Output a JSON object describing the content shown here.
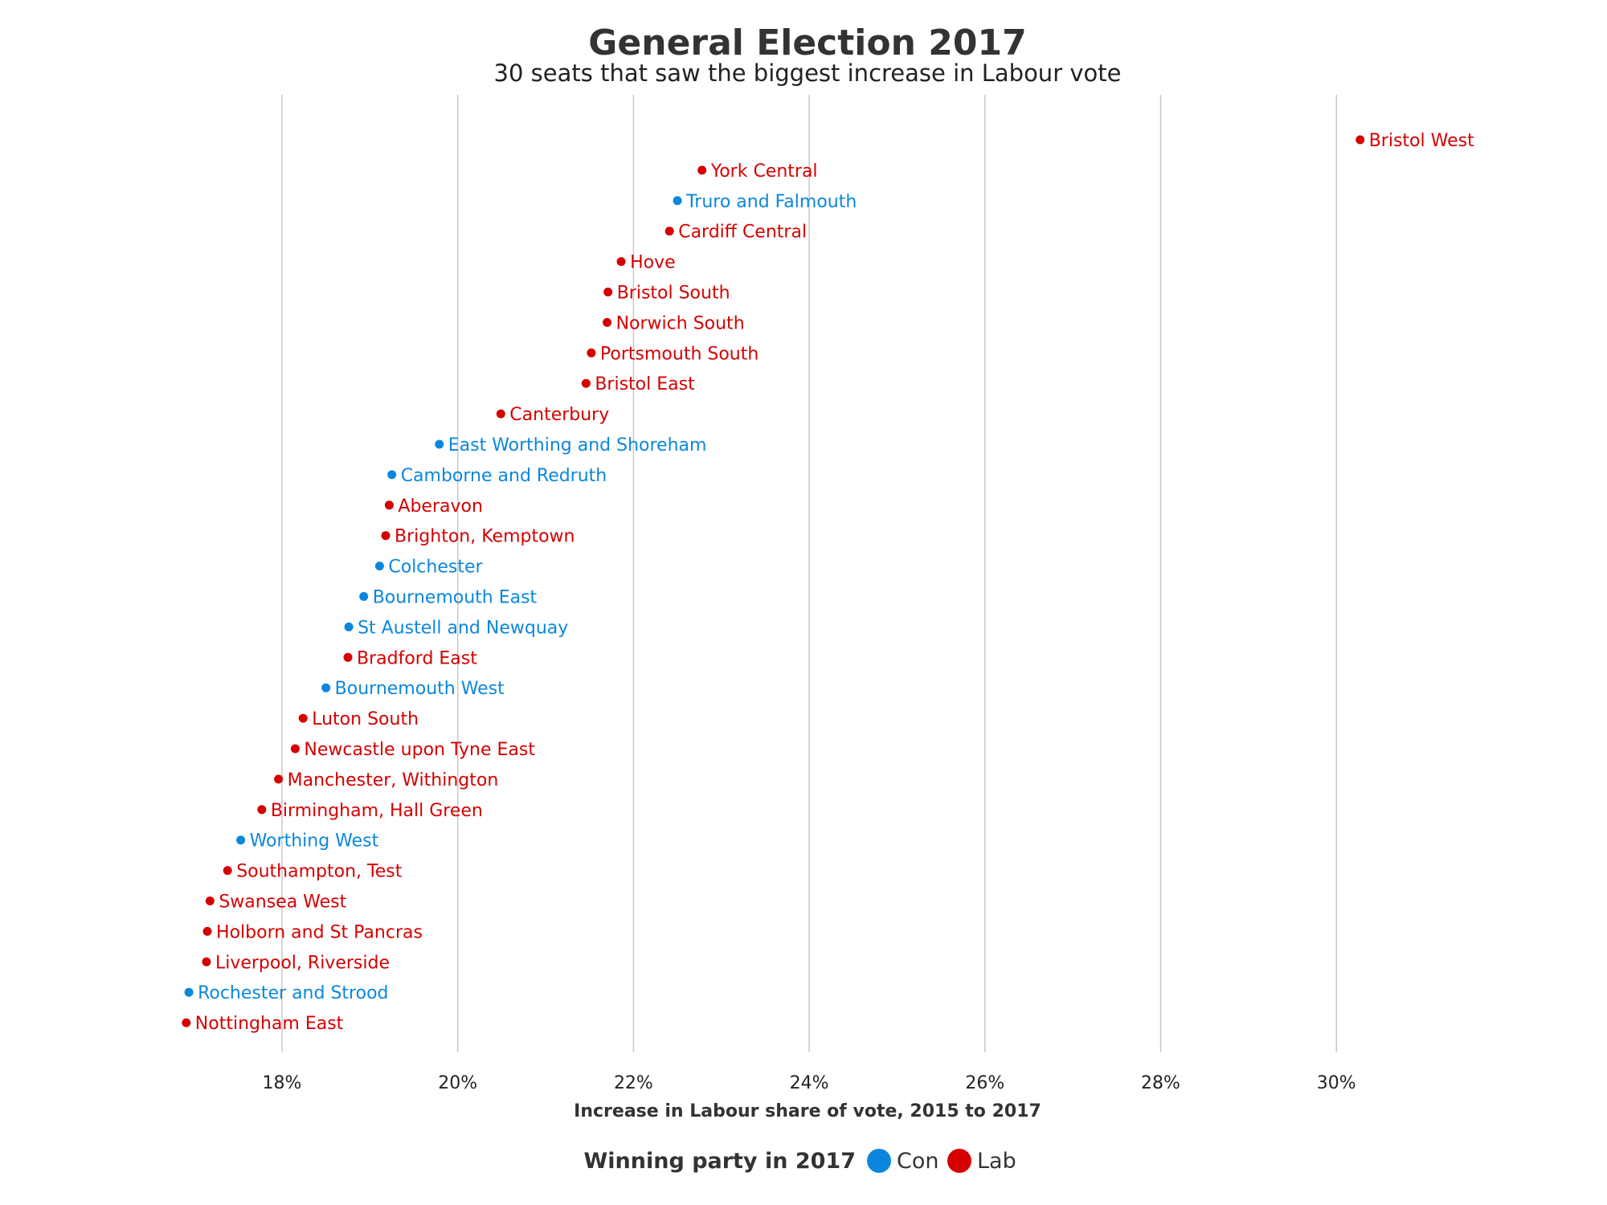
{
  "chart_data": {
    "type": "scatter",
    "title": "General Election 2017",
    "subtitle": "30 seats that saw the biggest increase in Labour vote",
    "xlabel": "Increase in Labour share of vote, 2015 to 2017",
    "xlim": [
      16.9,
      31.8
    ],
    "x_ticks": [
      18,
      20,
      22,
      24,
      26,
      28,
      30
    ],
    "x_tick_labels": [
      "18%",
      "20%",
      "22%",
      "24%",
      "26%",
      "28%",
      "30%"
    ],
    "grid": "vertical",
    "legend": {
      "title": "Winning party in 2017",
      "placement": "bottom",
      "entries": [
        {
          "name": "Con",
          "color": "#0a87dc"
        },
        {
          "name": "Lab",
          "color": "#d50000"
        }
      ]
    },
    "colors": {
      "Con": "#0a87dc",
      "Lab": "#d50000"
    },
    "points": [
      {
        "label": "Bristol West",
        "value": 30.27,
        "party": "Lab"
      },
      {
        "label": "York Central",
        "value": 22.78,
        "party": "Lab"
      },
      {
        "label": "Truro and Falmouth",
        "value": 22.5,
        "party": "Con"
      },
      {
        "label": "Cardiff Central",
        "value": 22.41,
        "party": "Lab"
      },
      {
        "label": "Hove",
        "value": 21.86,
        "party": "Lab"
      },
      {
        "label": "Bristol South",
        "value": 21.71,
        "party": "Lab"
      },
      {
        "label": "Norwich South",
        "value": 21.7,
        "party": "Lab"
      },
      {
        "label": "Portsmouth South",
        "value": 21.52,
        "party": "Lab"
      },
      {
        "label": "Bristol East",
        "value": 21.46,
        "party": "Lab"
      },
      {
        "label": "Canterbury",
        "value": 20.49,
        "party": "Lab"
      },
      {
        "label": "East Worthing and Shoreham",
        "value": 19.79,
        "party": "Con"
      },
      {
        "label": "Camborne and Redruth",
        "value": 19.25,
        "party": "Con"
      },
      {
        "label": "Aberavon",
        "value": 19.22,
        "party": "Lab"
      },
      {
        "label": "Brighton, Kemptown",
        "value": 19.18,
        "party": "Lab"
      },
      {
        "label": "Colchester",
        "value": 19.11,
        "party": "Con"
      },
      {
        "label": "Bournemouth East",
        "value": 18.93,
        "party": "Con"
      },
      {
        "label": "St Austell and Newquay",
        "value": 18.76,
        "party": "Con"
      },
      {
        "label": "Bradford East",
        "value": 18.75,
        "party": "Lab"
      },
      {
        "label": "Bournemouth West",
        "value": 18.5,
        "party": "Con"
      },
      {
        "label": "Luton South",
        "value": 18.24,
        "party": "Lab"
      },
      {
        "label": "Newcastle upon Tyne East",
        "value": 18.15,
        "party": "Lab"
      },
      {
        "label": "Manchester, Withington",
        "value": 17.96,
        "party": "Lab"
      },
      {
        "label": "Birmingham, Hall Green",
        "value": 17.77,
        "party": "Lab"
      },
      {
        "label": "Worthing West",
        "value": 17.53,
        "party": "Con"
      },
      {
        "label": "Southampton, Test",
        "value": 17.38,
        "party": "Lab"
      },
      {
        "label": "Swansea West",
        "value": 17.18,
        "party": "Lab"
      },
      {
        "label": "Holborn and St Pancras",
        "value": 17.15,
        "party": "Lab"
      },
      {
        "label": "Liverpool, Riverside",
        "value": 17.14,
        "party": "Lab"
      },
      {
        "label": "Rochester and Strood",
        "value": 16.94,
        "party": "Con"
      },
      {
        "label": "Nottingham East",
        "value": 16.91,
        "party": "Lab"
      }
    ]
  }
}
